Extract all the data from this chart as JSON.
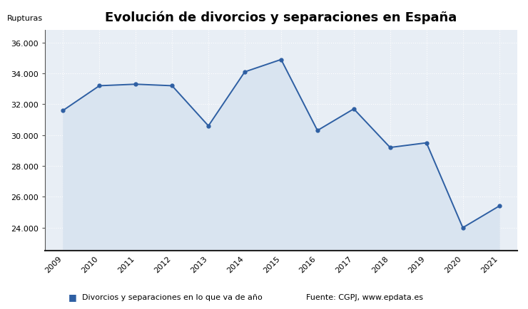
{
  "title": "Evolución de divorcios y separaciones en España",
  "ylabel": "Rupturas",
  "years": [
    2009,
    2010,
    2011,
    2012,
    2013,
    2014,
    2015,
    2016,
    2017,
    2018,
    2019,
    2020,
    2021
  ],
  "values": [
    31600,
    33200,
    33300,
    33200,
    30600,
    34100,
    34900,
    30300,
    31700,
    29200,
    29500,
    24000,
    25400
  ],
  "line_color": "#2e5fa3",
  "fill_color": "#d9e4f0",
  "marker": "o",
  "marker_size": 3.5,
  "line_width": 1.4,
  "ylim_min": 22500,
  "ylim_max": 36800,
  "yticks": [
    24000,
    26000,
    28000,
    30000,
    32000,
    34000,
    36000
  ],
  "background_color": "#e8eef5",
  "legend_label": "Divorcios y separaciones en lo que va de año",
  "source_text": "Fuente: CGPJ, www.epdata.es",
  "title_fontsize": 13,
  "ylabel_fontsize": 8,
  "tick_fontsize": 8,
  "legend_fontsize": 8
}
